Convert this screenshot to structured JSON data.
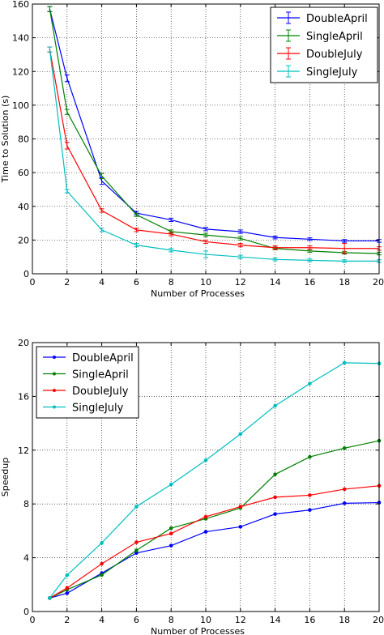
{
  "chart_data": [
    {
      "type": "line",
      "xlabel": "Number of Processes",
      "ylabel": "Time to Solution (s)",
      "xlim": [
        0,
        20
      ],
      "ylim": [
        0,
        160
      ],
      "xticks": [
        0,
        2,
        4,
        6,
        8,
        10,
        12,
        14,
        16,
        18,
        20
      ],
      "yticks": [
        0,
        20,
        40,
        60,
        80,
        100,
        120,
        140,
        160
      ],
      "grid": true,
      "legend_position": "top-right",
      "markers": false,
      "error_bars": true,
      "x": [
        1,
        2,
        4,
        6,
        8,
        10,
        12,
        14,
        16,
        18,
        20
      ],
      "series": [
        {
          "name": "DoubleApril",
          "color": "#0000ff",
          "values": [
            157,
            116,
            55,
            36,
            32,
            26.5,
            25,
            21.5,
            20.5,
            19.5,
            19.5
          ],
          "errors": [
            1.5,
            2,
            2,
            1,
            1,
            1,
            1,
            0.8,
            0.8,
            0.8,
            0.8
          ]
        },
        {
          "name": "SingleApril",
          "color": "#008000",
          "values": [
            157,
            96,
            58,
            35,
            25,
            23,
            21,
            15,
            13.5,
            12.5,
            12
          ],
          "errors": [
            1.5,
            1.5,
            1.5,
            1,
            1,
            1,
            1,
            0.8,
            0.8,
            0.8,
            0.8
          ]
        },
        {
          "name": "DoubleJuly",
          "color": "#ff0000",
          "values": [
            133,
            76,
            37.5,
            26,
            23.5,
            19,
            17,
            15.5,
            15.5,
            15,
            15
          ],
          "errors": [
            1.5,
            2,
            1,
            1,
            1,
            1,
            1,
            1,
            1,
            3,
            1
          ]
        },
        {
          "name": "SingleJuly",
          "color": "#00bfbf",
          "values": [
            133,
            49,
            26,
            17,
            14,
            11.5,
            10,
            8.5,
            8,
            7.5,
            7.5
          ],
          "errors": [
            1.5,
            1,
            1,
            1,
            1,
            2,
            1,
            0.8,
            0.8,
            0.8,
            0.8
          ]
        }
      ]
    },
    {
      "type": "line",
      "xlabel": "Number of Processes",
      "ylabel": "Speedup",
      "xlim": [
        0,
        20
      ],
      "ylim": [
        0,
        20
      ],
      "xticks": [
        0,
        2,
        4,
        6,
        8,
        10,
        12,
        14,
        16,
        18,
        20
      ],
      "yticks": [
        0,
        4,
        8,
        12,
        16,
        20
      ],
      "grid": true,
      "legend_position": "top-left",
      "markers": true,
      "error_bars": false,
      "x": [
        1,
        2,
        4,
        6,
        8,
        10,
        12,
        14,
        16,
        18,
        20
      ],
      "series": [
        {
          "name": "DoubleApril",
          "color": "#0000ff",
          "values": [
            1.0,
            1.36,
            2.85,
            4.35,
            4.9,
            5.93,
            6.3,
            7.25,
            7.55,
            8.05,
            8.1
          ]
        },
        {
          "name": "SingleApril",
          "color": "#008000",
          "values": [
            1.0,
            1.62,
            2.72,
            4.55,
            6.2,
            6.9,
            7.7,
            10.2,
            11.5,
            12.15,
            12.7
          ]
        },
        {
          "name": "DoubleJuly",
          "color": "#ff0000",
          "values": [
            1.0,
            1.75,
            3.55,
            5.15,
            5.8,
            7.05,
            7.8,
            8.5,
            8.65,
            9.1,
            9.35
          ]
        },
        {
          "name": "SingleJuly",
          "color": "#00bfbf",
          "values": [
            1.0,
            2.7,
            5.1,
            7.8,
            9.45,
            11.25,
            13.2,
            15.3,
            16.95,
            18.5,
            18.45
          ]
        }
      ]
    }
  ]
}
